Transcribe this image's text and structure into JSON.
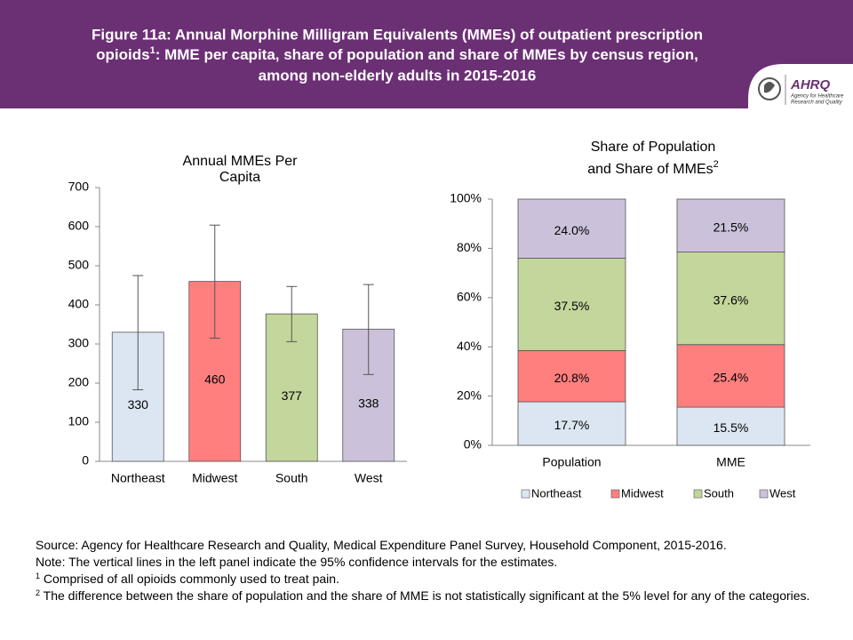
{
  "header": {
    "title_line1": "Figure 11a: Annual Morphine Milligram Equivalents (MMEs) of outpatient prescription",
    "title_line2a": "opioids",
    "title_sup": "1",
    "title_line2b": ": MME per capita, share of population and share of MMEs by census region,",
    "title_line3": "among non-elderly adults in 2015-2016",
    "logo_name": "AHRQ",
    "logo_line1": "Agency for Healthcare",
    "logo_line2": "Research and Quality"
  },
  "chart_data": [
    {
      "type": "bar",
      "title_lines": [
        "Annual MMEs Per",
        "Capita"
      ],
      "categories": [
        "Northeast",
        "Midwest",
        "South",
        "West"
      ],
      "values": [
        330,
        460,
        377,
        338
      ],
      "ci_low": [
        183,
        315,
        306,
        222
      ],
      "ci_high": [
        475,
        604,
        447,
        452
      ],
      "colors": [
        "#dce6f2",
        "#ff7f7f",
        "#c3d69b",
        "#ccc1da"
      ],
      "ylim": [
        0,
        700
      ],
      "yticks": [
        0,
        100,
        200,
        300,
        400,
        500,
        600,
        700
      ],
      "grid": false
    },
    {
      "type": "stacked_bar",
      "title_lines": [
        "Share of Population",
        "and Share of MMEs"
      ],
      "title_sup": "2",
      "categories": [
        "Population",
        "MME"
      ],
      "series": [
        {
          "name": "Northeast",
          "color": "#dce6f2",
          "values": [
            17.7,
            15.5
          ],
          "value_labels": [
            "17.7%",
            "15.5%"
          ]
        },
        {
          "name": "Midwest",
          "color": "#ff7f7f",
          "values": [
            20.8,
            25.4
          ],
          "value_labels": [
            "20.8%",
            "25.4%"
          ]
        },
        {
          "name": "South",
          "color": "#c3d69b",
          "values": [
            37.5,
            37.6
          ],
          "value_labels": [
            "37.5%",
            "37.6%"
          ]
        },
        {
          "name": "West",
          "color": "#ccc1da",
          "values": [
            24.0,
            21.5
          ],
          "value_labels": [
            "24.0%",
            "21.5%"
          ]
        }
      ],
      "ylim": [
        0,
        100
      ],
      "yticks": [
        {
          "value": 0,
          "label": "0%"
        },
        {
          "value": 20,
          "label": "20%"
        },
        {
          "value": 40,
          "label": "40%"
        },
        {
          "value": 60,
          "label": "60%"
        },
        {
          "value": 80,
          "label": "80%"
        },
        {
          "value": 100,
          "label": "100%"
        }
      ],
      "legend": "bottom",
      "grid": false
    }
  ],
  "notes": {
    "source": "Source: Agency for Healthcare Research and Quality, Medical Expenditure Panel Survey, Household Component, 2015-2016.",
    "note": "Note: The vertical lines in the left panel indicate the 95% confidence intervals for the estimates.",
    "footnote1_mark": "1",
    "footnote1": " Comprised of all opioids commonly used to treat pain.",
    "footnote2_mark": "2",
    "footnote2": " The difference between the share of population and the share of MME is not statistically significant at the 5% level for any of the categories."
  }
}
